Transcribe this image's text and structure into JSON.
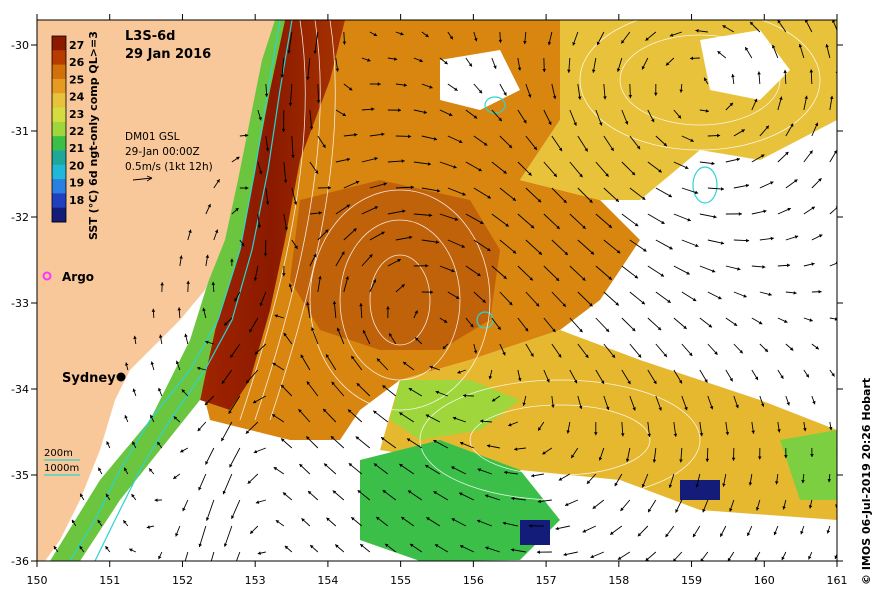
{
  "product": "L3S-6d",
  "date": "29 Jan 2016",
  "current_source": "DM01 GSL",
  "current_time": "29-Jan 00:00Z",
  "vector_scale": "0.5m/s (1kt 12h)",
  "colorbar": {
    "label": "SST (°C) 6d ngt-only comp QL>=3",
    "ticks": [
      "27",
      "26",
      "25",
      "24",
      "23",
      "22",
      "21",
      "20",
      "19",
      "18"
    ],
    "colors": [
      "#8b1a00",
      "#b83c00",
      "#d2700a",
      "#e69a22",
      "#e8c23a",
      "#d4dc40",
      "#9ed63c",
      "#3cbf48",
      "#1fa89a",
      "#20b8d8",
      "#2a7fe0",
      "#2040c0",
      "#141c7a"
    ]
  },
  "legend": {
    "argo_label": "Argo",
    "city_label": "Sydney",
    "isobath_200": "200m",
    "isobath_1000": "1000m"
  },
  "axes": {
    "x_ticks": [
      "150",
      "151",
      "152",
      "153",
      "154",
      "155",
      "156",
      "157",
      "158",
      "159",
      "160",
      "161"
    ],
    "y_ticks": [
      "-30",
      "-31",
      "-32",
      "-33",
      "-34",
      "-35",
      "-36"
    ]
  },
  "credit": "© IMOS 06-Jul-2019 20:26 Hobart",
  "colors": {
    "land": "#f9c89a",
    "warm_core": "#8b1a00",
    "warm": "#c8620c",
    "mid": "#e0a020",
    "cool": "#3cbf48",
    "isobath": "#2ad4d4"
  }
}
